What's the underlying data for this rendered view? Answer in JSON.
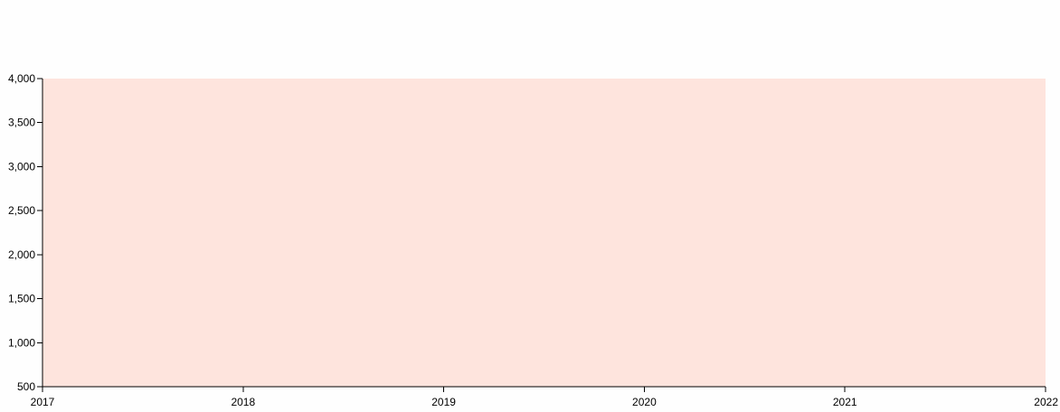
{
  "chart_data": {
    "type": "area",
    "title": "",
    "xlabel": "",
    "ylabel": "",
    "x_ticks": [
      "2017",
      "2018",
      "2019",
      "2020",
      "2021",
      "2022"
    ],
    "y_ticks": [
      "500",
      "1,000",
      "1,500",
      "2,000",
      "2,500",
      "3,000",
      "3,500",
      "4,000"
    ],
    "xlim": [
      2017,
      2022
    ],
    "ylim": [
      500,
      4000
    ],
    "grid": false,
    "series": [
      {
        "x": [
          2017,
          2018,
          2019,
          2020,
          2021,
          2022
        ],
        "values": [
          4000,
          4000,
          4000,
          4000,
          4000,
          4000
        ],
        "color": "#fee4dd"
      }
    ]
  }
}
